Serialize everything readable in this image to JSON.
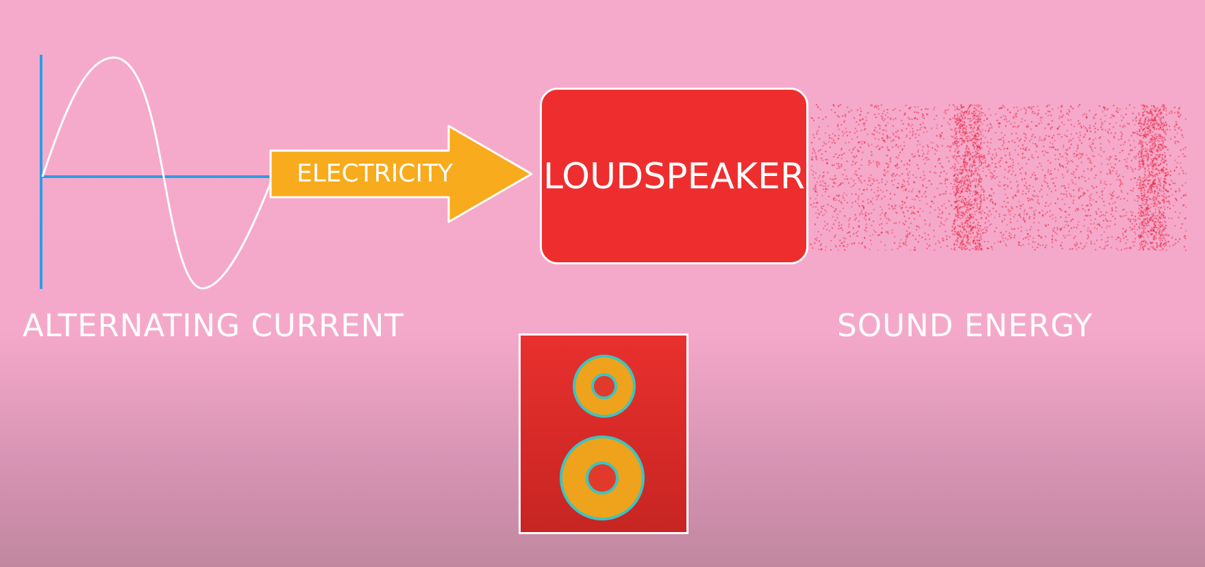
{
  "labels": {
    "alternating_current": "ALTERNATING CURRENT",
    "electricity": "ELECTRICITY",
    "loudspeaker": "LOUDSPEAKER",
    "sound_energy": "SOUND ENERGY"
  },
  "colors": {
    "background": "#f6aacb",
    "axis": "#2f9be6",
    "wave": "#ffffff",
    "arrow": "#f8ab1c",
    "speaker_box": "#ee2e2e",
    "sound_particles": "#e8132d",
    "speaker_cone": "#efa21b",
    "cone_ring": "#3ac5c1"
  },
  "icons": {
    "speaker": "speaker-icon",
    "sine_wave": "sine-wave-icon"
  }
}
